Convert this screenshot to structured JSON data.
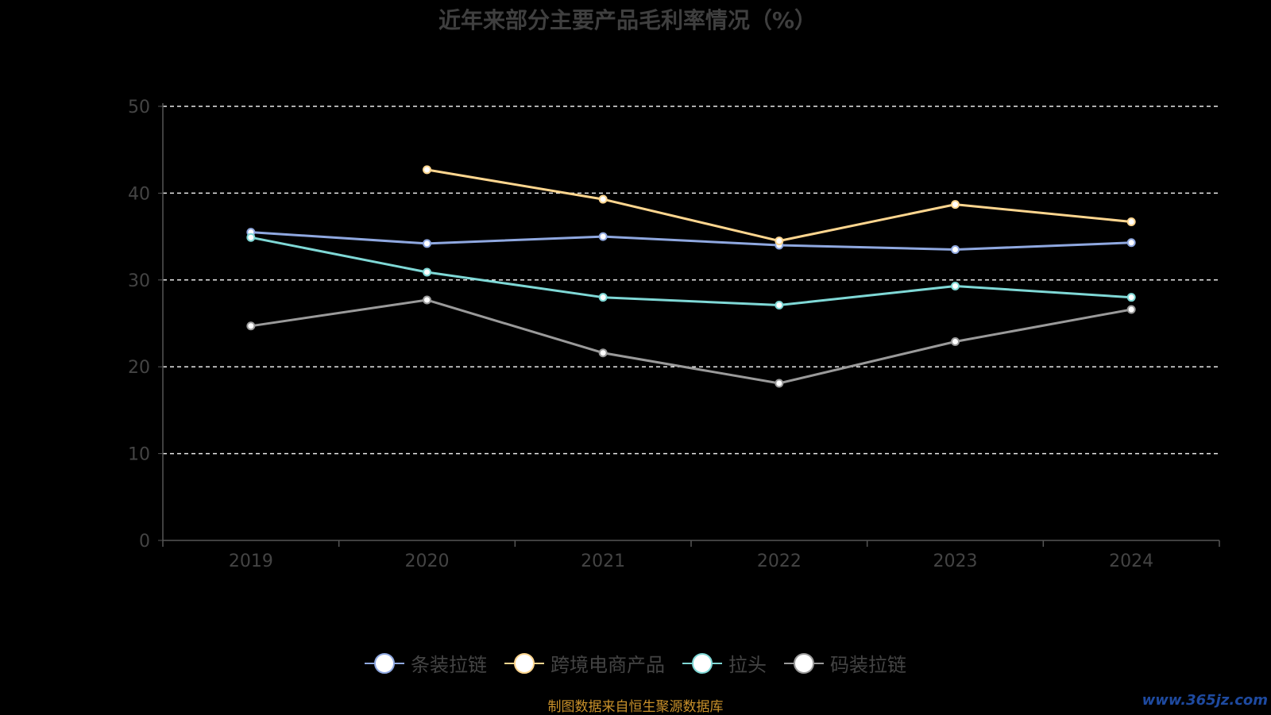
{
  "title": "近年来部分主要产品毛利率情况（%）",
  "footer": "制图数据来自恒生聚源数据库",
  "watermark": "www.365jz.com",
  "chart_data": {
    "type": "line",
    "x": [
      "2019",
      "2020",
      "2021",
      "2022",
      "2023",
      "2024"
    ],
    "ylim": [
      0,
      50
    ],
    "yticks": [
      0,
      10,
      20,
      30,
      40,
      50
    ],
    "grid": true,
    "legend_position": "bottom",
    "series": [
      {
        "name": "条装拉链",
        "color": "#8fa8e0",
        "values": [
          35.5,
          34.2,
          35.0,
          34.0,
          33.5,
          34.3
        ]
      },
      {
        "name": "跨境电商产品",
        "color": "#ffd68f",
        "values": [
          null,
          42.7,
          39.3,
          34.5,
          38.7,
          36.7
        ]
      },
      {
        "name": "拉头",
        "color": "#7fd8d6",
        "values": [
          34.9,
          30.9,
          28.0,
          27.1,
          29.3,
          28.0
        ]
      },
      {
        "name": "码装拉链",
        "color": "#9a9a9a",
        "values": [
          24.7,
          27.7,
          21.6,
          18.1,
          22.9,
          26.6
        ]
      }
    ]
  }
}
